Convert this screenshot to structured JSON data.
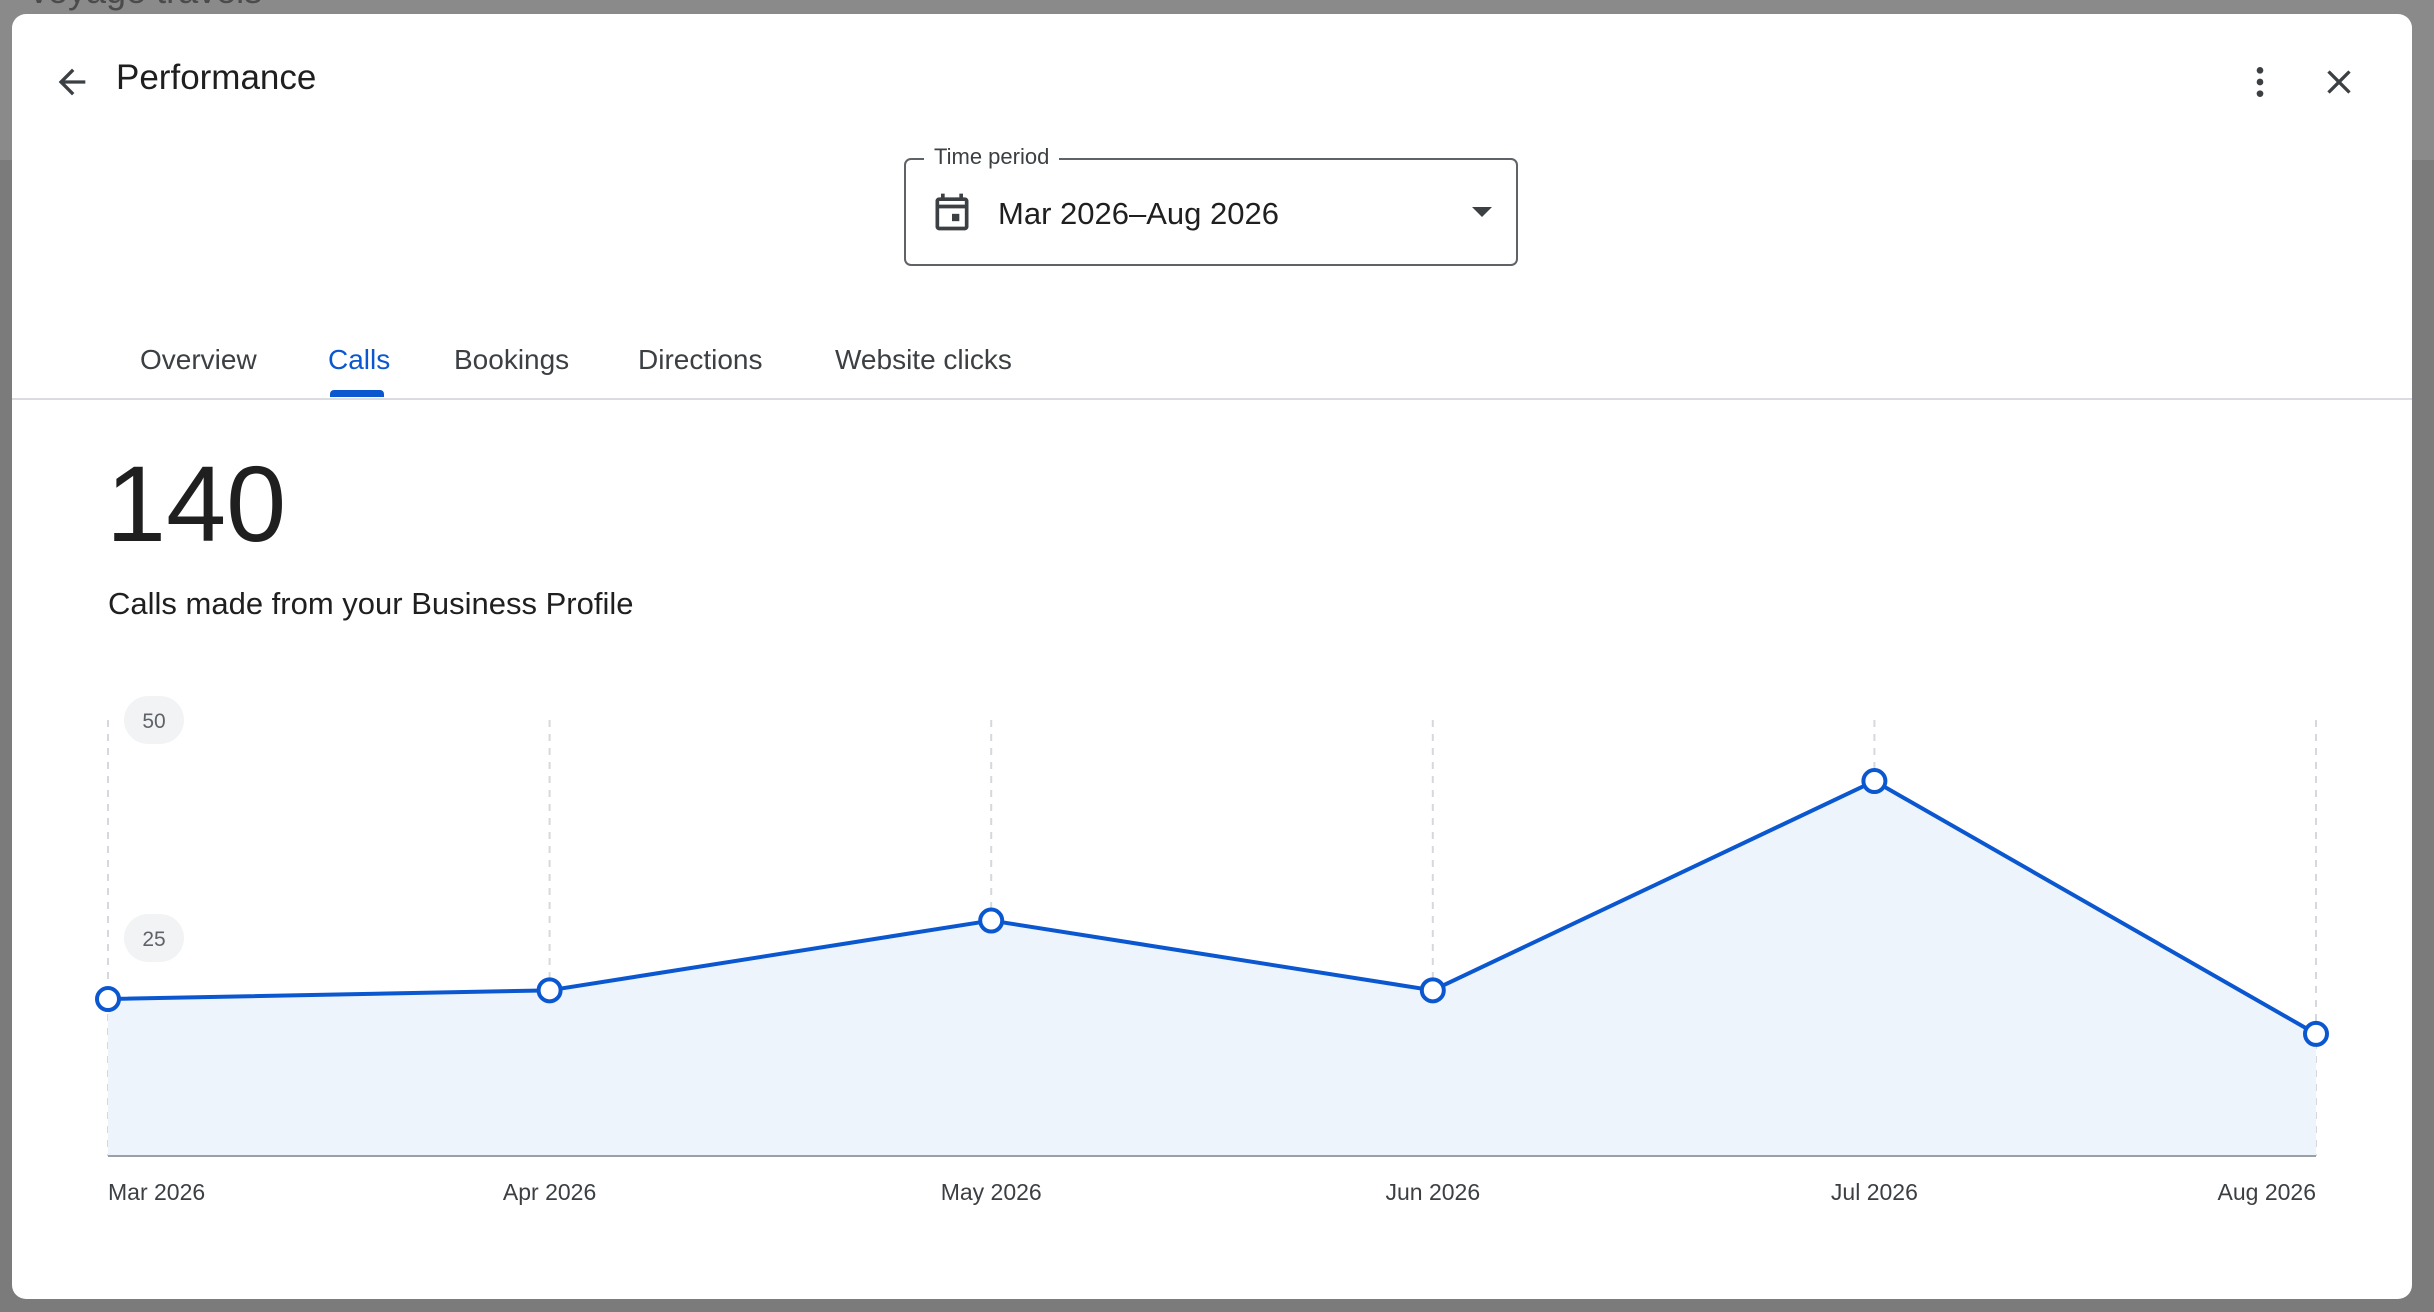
{
  "backdrop": {
    "text": "voyage travels"
  },
  "header": {
    "title": "Performance",
    "back_icon": "arrow-left-icon",
    "more_icon": "more-vert-icon",
    "close_icon": "close-icon"
  },
  "time_period": {
    "label": "Time period",
    "value": "Mar 2026–Aug 2026",
    "icon": "calendar-icon"
  },
  "tabs": [
    {
      "label": "Overview",
      "active": false
    },
    {
      "label": "Calls",
      "active": true
    },
    {
      "label": "Bookings",
      "active": false
    },
    {
      "label": "Directions",
      "active": false
    },
    {
      "label": "Website clicks",
      "active": false
    }
  ],
  "summary": {
    "total": "140",
    "description": "Calls made from your Business Profile"
  },
  "colors": {
    "accent": "#0b57d0",
    "area_fill": "#eef4fc"
  },
  "chart_data": {
    "type": "line",
    "categories": [
      "Mar 2026",
      "Apr 2026",
      "May 2026",
      "Jun 2026",
      "Jul 2026",
      "Aug 2026"
    ],
    "values": [
      18,
      19,
      27,
      19,
      43,
      14
    ],
    "yticks": [
      "50",
      "25"
    ],
    "ylim": [
      0,
      50
    ],
    "grid": true,
    "area": true
  }
}
